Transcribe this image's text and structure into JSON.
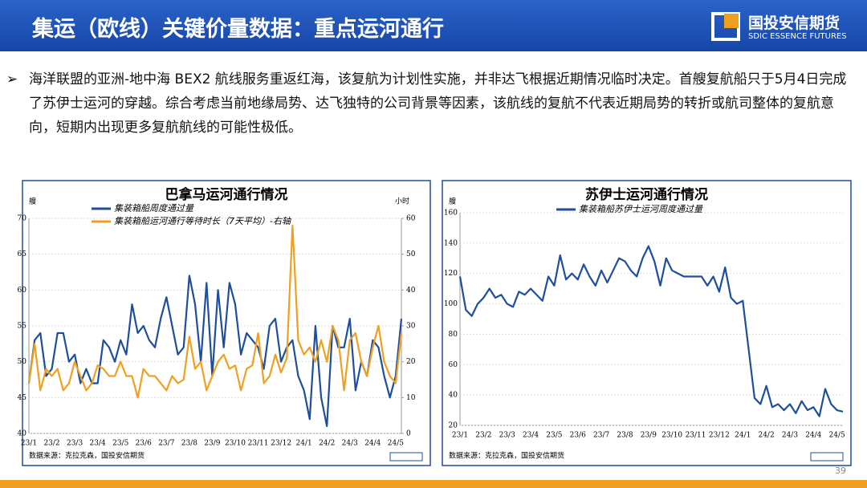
{
  "header": {
    "title": "集运（欧线）关键价量数据：重点运河通行"
  },
  "logo": {
    "name": "国投安信期货",
    "en": "SDIC ESSENCE FUTURES"
  },
  "bullet": "海洋联盟的亚洲-地中海 BEX2 航线服务重返红海，该复航为计划性实施，并非达飞根据近期情况临时决定。首艘复航船只于5月4日完成了苏伊士运河的穿越。综合考虑当前地缘局势、达飞独特的公司背景等因素，该航线的复航不代表近期局势的转折或航司整体的复航意向，短期内出现更多复航航线的可能性极低。",
  "page_number": "39",
  "chart_data": [
    {
      "type": "line",
      "title": "巴拿马运河通行情况",
      "y_label": "艘",
      "y2_label": "小时",
      "source": "数据来源：克拉克森，国投安信期货",
      "categories": [
        "23/1",
        null,
        null,
        null,
        "23/2",
        null,
        null,
        null,
        "23/3",
        null,
        null,
        null,
        "23/4",
        null,
        null,
        null,
        "23/5",
        null,
        null,
        null,
        "23/6",
        null,
        null,
        null,
        "23/7",
        null,
        null,
        null,
        "23/8",
        null,
        null,
        null,
        "23/9",
        null,
        null,
        null,
        "23/10",
        null,
        null,
        null,
        "23/11",
        null,
        null,
        null,
        "23/12",
        null,
        null,
        null,
        "24/1",
        null,
        null,
        null,
        "24/2",
        null,
        null,
        null,
        "24/3",
        null,
        null,
        null,
        "24/4",
        null,
        null,
        null,
        "24/5",
        null
      ],
      "ylim": [
        40,
        70
      ],
      "yticks": [
        40,
        45,
        50,
        55,
        60,
        65,
        70
      ],
      "y2lim": [
        0,
        60
      ],
      "y2ticks": [
        0,
        10,
        20,
        30,
        40,
        50,
        60
      ],
      "series": [
        {
          "name": "集装箱船周度通过量",
          "color": "#1f4e9c",
          "values": [
            47,
            53,
            54,
            48,
            49,
            54,
            54,
            50,
            51,
            47,
            49,
            47,
            47,
            53,
            52,
            50,
            53,
            51,
            58,
            54,
            55,
            53,
            52,
            56,
            59,
            55,
            51,
            52,
            62,
            58,
            50,
            61,
            48,
            60,
            52,
            61,
            58,
            51,
            54,
            53,
            52,
            49,
            55,
            56,
            50,
            52,
            53,
            48,
            46,
            42,
            55,
            45,
            41,
            55,
            52,
            52,
            56,
            46,
            50,
            48,
            53,
            52,
            48,
            45,
            48,
            56
          ]
        },
        {
          "name": "集装箱船运河通行等待时长（7天平均）-右轴",
          "color": "#f0a020",
          "axis": "y2",
          "values": [
            14,
            25,
            12,
            18,
            16,
            18,
            12,
            14,
            20,
            16,
            12,
            14,
            19,
            18,
            16,
            16,
            20,
            16,
            16,
            10,
            18,
            16,
            16,
            14,
            12,
            16,
            14,
            15,
            27,
            18,
            20,
            12,
            16,
            20,
            22,
            18,
            19,
            12,
            18,
            19,
            28,
            14,
            16,
            22,
            17,
            21,
            58,
            26,
            22,
            24,
            20,
            26,
            20,
            30,
            26,
            12,
            26,
            28,
            20,
            16,
            24,
            30,
            20,
            16,
            14,
            28
          ]
        }
      ]
    },
    {
      "type": "line",
      "title": "苏伊士运河通行情况",
      "y_label": "艘",
      "source": "数据来源：克拉克森，国投安信期货",
      "categories": [
        "23/1",
        null,
        null,
        null,
        "23/2",
        null,
        null,
        null,
        "23/3",
        null,
        null,
        null,
        "23/4",
        null,
        null,
        null,
        "23/5",
        null,
        null,
        null,
        "23/6",
        null,
        null,
        null,
        "23/7",
        null,
        null,
        null,
        "23/8",
        null,
        null,
        null,
        "23/9",
        null,
        null,
        null,
        "23/10",
        null,
        null,
        null,
        "23/11",
        null,
        null,
        null,
        "23/12",
        null,
        null,
        null,
        "24/1",
        null,
        null,
        null,
        "24/2",
        null,
        null,
        null,
        "24/3",
        null,
        null,
        null,
        "24/4",
        null,
        null,
        null,
        "24/5",
        null
      ],
      "ylim": [
        20,
        160
      ],
      "yticks": [
        20,
        40,
        60,
        80,
        100,
        120,
        140,
        160
      ],
      "series": [
        {
          "name": "集装箱船苏伊士运河周度通过量",
          "color": "#1f4e9c",
          "values": [
            118,
            96,
            92,
            100,
            104,
            110,
            104,
            106,
            100,
            98,
            108,
            106,
            110,
            106,
            102,
            118,
            112,
            132,
            116,
            120,
            116,
            126,
            118,
            112,
            122,
            114,
            122,
            130,
            128,
            122,
            118,
            130,
            138,
            128,
            112,
            130,
            122,
            120,
            118,
            118,
            118,
            118,
            112,
            118,
            108,
            124,
            104,
            100,
            102,
            70,
            38,
            34,
            46,
            32,
            34,
            30,
            34,
            28,
            36,
            30,
            32,
            26,
            44,
            34,
            30,
            29
          ]
        }
      ]
    }
  ]
}
